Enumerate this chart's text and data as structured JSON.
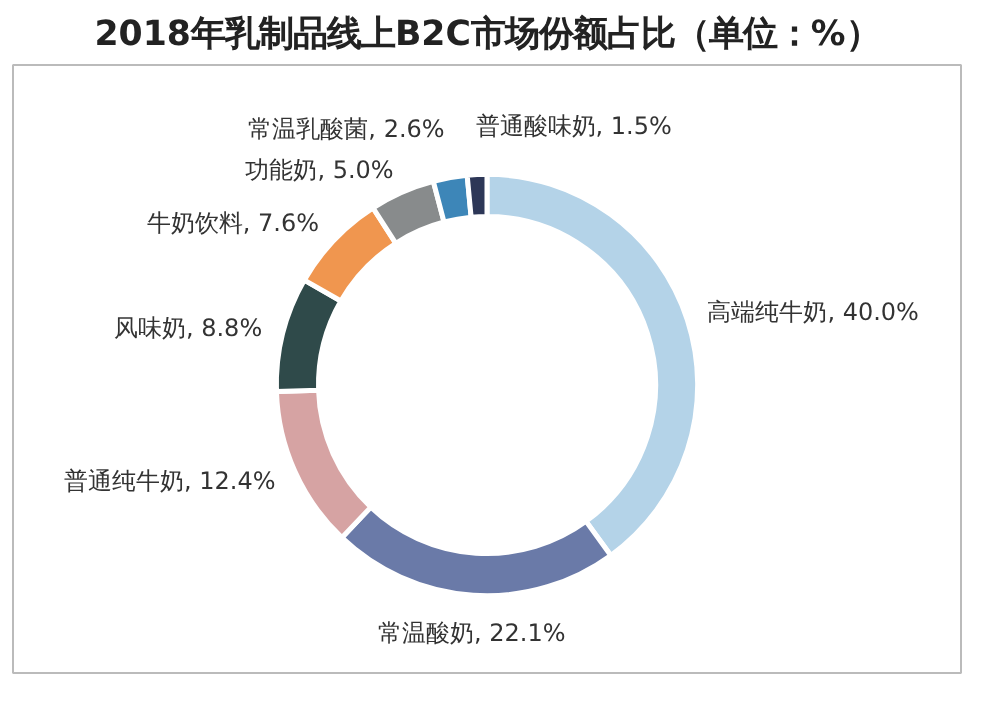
{
  "chart_data": {
    "type": "donut",
    "title": "2018年乳制品线上B2C市场份额占比（单位：%）",
    "categories": [
      "高端纯牛奶",
      "常温酸奶",
      "普通纯牛奶",
      "风味奶",
      "牛奶饮料",
      "功能奶",
      "常温乳酸菌",
      "普通酸味奶"
    ],
    "values": [
      40.0,
      22.1,
      12.4,
      8.8,
      7.6,
      5.0,
      2.6,
      1.5
    ],
    "value_labels": [
      "40.0%",
      "22.1%",
      "12.4%",
      "8.8%",
      "7.6%",
      "5.0%",
      "2.6%",
      "1.5%"
    ],
    "colors": [
      "#b4d3e8",
      "#6a7aa8",
      "#d6a3a3",
      "#2f4a4a",
      "#f0964f",
      "#888b8c",
      "#3d86b8",
      "#2d3757"
    ]
  }
}
